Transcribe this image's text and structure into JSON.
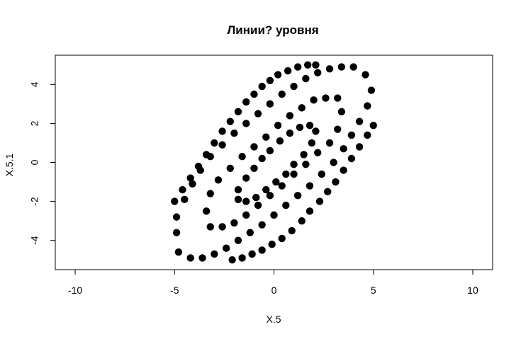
{
  "chart_data": {
    "type": "scatter",
    "title": "Линии? уровня",
    "xlabel": "X.5",
    "ylabel": "X.5.1",
    "xlim": [
      -11,
      11
    ],
    "ylim": [
      -5.5,
      5.5
    ],
    "x_ticks": [
      -10,
      -5,
      0,
      5,
      10
    ],
    "x_tick_labels": [
      "-10",
      "-5",
      "0",
      "5",
      "10"
    ],
    "y_ticks": [
      -4,
      -2,
      0,
      2,
      4
    ],
    "y_tick_labels": [
      "-4",
      "-2",
      "0",
      "2",
      "4"
    ],
    "grid": false,
    "legend": "none",
    "marker_color": "#000000",
    "series": [
      {
        "points": [
          [
            -1.8,
            -1.9
          ],
          [
            -1.4,
            -2.0
          ],
          [
            -0.9,
            -1.8
          ],
          [
            -0.4,
            -1.4
          ],
          [
            0.1,
            -1.0
          ],
          [
            0.6,
            -0.6
          ],
          [
            1.0,
            -0.1
          ],
          [
            1.5,
            0.4
          ],
          [
            1.9,
            1.0
          ],
          [
            2.1,
            1.6
          ],
          [
            1.8,
            1.9
          ],
          [
            1.3,
            1.8
          ],
          [
            0.8,
            1.5
          ],
          [
            0.3,
            1.1
          ],
          [
            -0.2,
            0.6
          ],
          [
            -0.6,
            0.2
          ],
          [
            -1.0,
            -0.3
          ],
          [
            -1.4,
            -0.8
          ],
          [
            -1.8,
            -1.4
          ]
        ]
      },
      {
        "points": [
          [
            -3.2,
            -3.3
          ],
          [
            -2.6,
            -3.3
          ],
          [
            -2.0,
            -3.1
          ],
          [
            -1.4,
            -2.7
          ],
          [
            -0.8,
            -2.2
          ],
          [
            -0.2,
            -1.7
          ],
          [
            0.4,
            -1.2
          ],
          [
            1.0,
            -0.6
          ],
          [
            1.6,
            -0.1
          ],
          [
            2.2,
            0.5
          ],
          [
            2.8,
            1.0
          ],
          [
            3.2,
            1.7
          ],
          [
            3.4,
            2.6
          ],
          [
            3.2,
            3.3
          ],
          [
            2.6,
            3.3
          ],
          [
            2.0,
            3.2
          ],
          [
            1.4,
            2.8
          ],
          [
            0.8,
            2.4
          ],
          [
            0.2,
            1.9
          ],
          [
            -0.4,
            1.3
          ],
          [
            -1.0,
            0.8
          ],
          [
            -1.6,
            0.3
          ],
          [
            -2.2,
            -0.3
          ],
          [
            -2.8,
            -0.9
          ],
          [
            -3.2,
            -1.6
          ],
          [
            -3.4,
            -2.5
          ]
        ]
      },
      {
        "points": [
          [
            -4.8,
            -4.6
          ],
          [
            -4.2,
            -4.9
          ],
          [
            -3.6,
            -4.9
          ],
          [
            -3.0,
            -4.7
          ],
          [
            -2.4,
            -4.4
          ],
          [
            -1.8,
            -4.0
          ],
          [
            -1.2,
            -3.6
          ],
          [
            -0.6,
            -3.2
          ],
          [
            0.0,
            -2.7
          ],
          [
            0.6,
            -2.2
          ],
          [
            1.2,
            -1.7
          ],
          [
            1.8,
            -1.2
          ],
          [
            2.4,
            -0.6
          ],
          [
            3.0,
            0.0
          ],
          [
            3.5,
            0.7
          ],
          [
            3.9,
            1.4
          ],
          [
            4.3,
            2.1
          ],
          [
            4.7,
            2.9
          ],
          [
            4.9,
            3.7
          ],
          [
            4.6,
            4.5
          ],
          [
            4.0,
            4.9
          ],
          [
            3.4,
            4.9
          ],
          [
            2.8,
            4.8
          ],
          [
            2.2,
            4.6
          ],
          [
            1.6,
            4.3
          ],
          [
            1.0,
            3.9
          ],
          [
            0.4,
            3.5
          ],
          [
            -0.2,
            3.0
          ],
          [
            -0.8,
            2.5
          ],
          [
            -1.4,
            2.0
          ],
          [
            -2.0,
            1.5
          ],
          [
            -2.6,
            0.9
          ],
          [
            -3.2,
            0.3
          ],
          [
            -3.7,
            -0.4
          ],
          [
            -4.1,
            -1.1
          ],
          [
            -4.5,
            -1.9
          ],
          [
            -4.9,
            -2.8
          ],
          [
            -4.9,
            -3.6
          ]
        ]
      },
      {
        "points": [
          [
            -5.0,
            -2.0
          ],
          [
            -4.6,
            -1.4
          ],
          [
            -4.2,
            -0.8
          ],
          [
            -3.8,
            -0.2
          ],
          [
            -3.4,
            0.4
          ],
          [
            -3.0,
            1.0
          ],
          [
            -2.6,
            1.6
          ],
          [
            -2.2,
            2.1
          ],
          [
            -1.8,
            2.6
          ],
          [
            -1.4,
            3.1
          ],
          [
            -1.0,
            3.5
          ],
          [
            -0.6,
            3.9
          ],
          [
            -0.2,
            4.2
          ],
          [
            0.2,
            4.5
          ],
          [
            0.7,
            4.7
          ],
          [
            1.2,
            4.9
          ],
          [
            1.7,
            5.0
          ],
          [
            2.1,
            5.0
          ]
        ]
      },
      {
        "points": [
          [
            -2.1,
            -5.0
          ],
          [
            -1.6,
            -4.9
          ],
          [
            -1.1,
            -4.7
          ],
          [
            -0.6,
            -4.5
          ],
          [
            -0.1,
            -4.2
          ],
          [
            0.4,
            -3.9
          ],
          [
            0.9,
            -3.5
          ],
          [
            1.4,
            -3.0
          ],
          [
            1.8,
            -2.5
          ],
          [
            2.3,
            -2.0
          ],
          [
            2.7,
            -1.5
          ],
          [
            3.1,
            -1.0
          ],
          [
            3.5,
            -0.4
          ],
          [
            3.9,
            0.2
          ],
          [
            4.3,
            0.8
          ],
          [
            4.7,
            1.4
          ],
          [
            5.0,
            1.9
          ]
        ]
      }
    ]
  }
}
